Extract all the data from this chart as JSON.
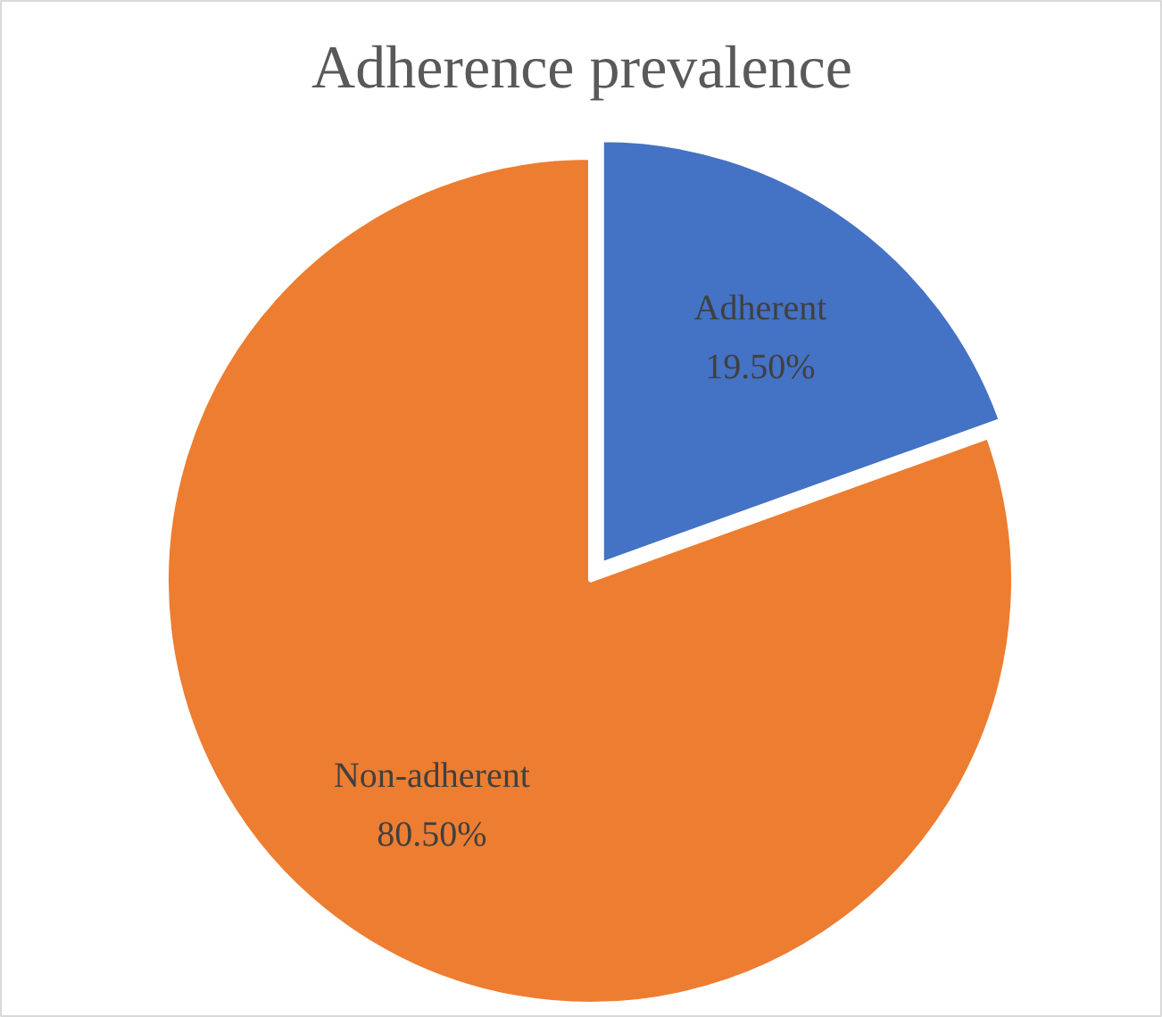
{
  "chart_data": {
    "type": "pie",
    "title": "Adherence prevalence",
    "categories": [
      "Adherent",
      "Non-adherent"
    ],
    "values": [
      19.5,
      80.5
    ],
    "colors": [
      "#4472c4",
      "#ed7d31"
    ],
    "value_labels": [
      "19.50%",
      "80.50%"
    ],
    "legend": false
  }
}
